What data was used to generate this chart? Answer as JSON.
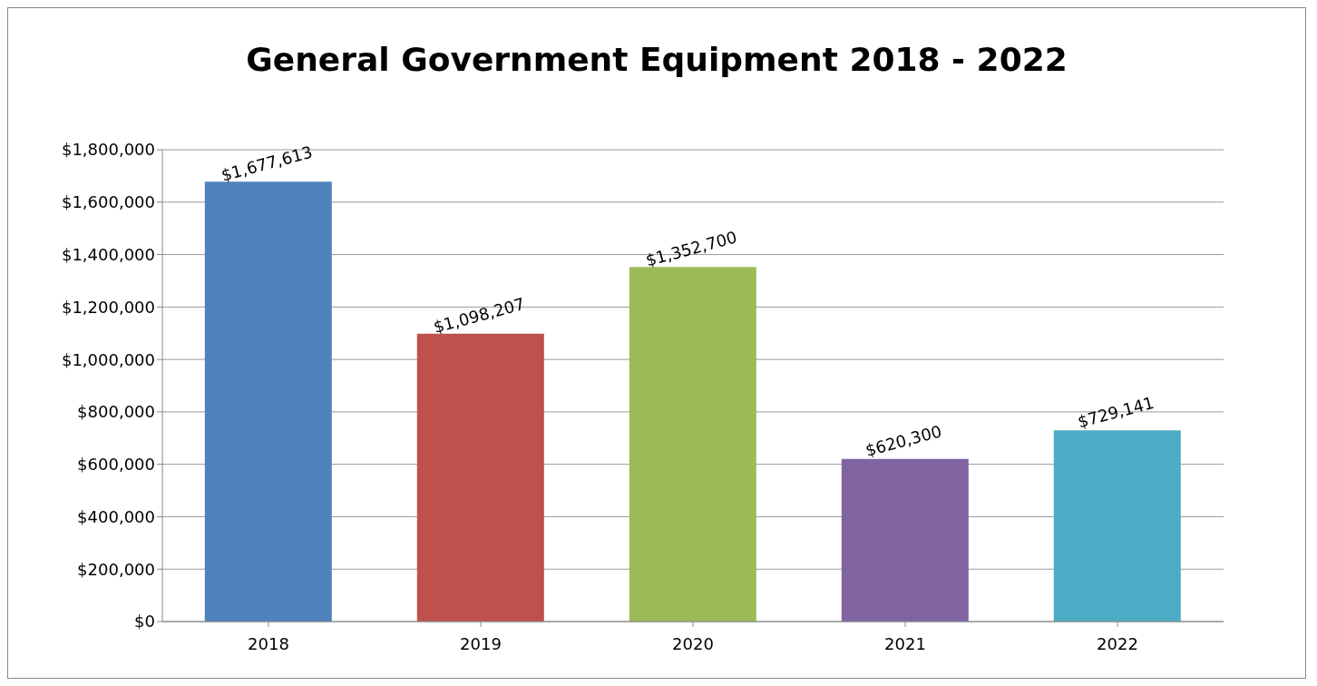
{
  "chart_data": {
    "type": "bar",
    "title": "General Government Equipment 2018 - 2022",
    "categories": [
      "2018",
      "2019",
      "2020",
      "2021",
      "2022"
    ],
    "values": [
      1677613,
      1098207,
      1352700,
      620300,
      729141
    ],
    "value_labels": [
      "$1,677,613",
      "$1,098,207",
      "$1,352,700",
      "$620,300",
      "$729,141"
    ],
    "colors": [
      "#4f81bd",
      "#c0504d",
      "#9bbb59",
      "#8064a2",
      "#4bacc6"
    ],
    "ylim": [
      0,
      1800000
    ],
    "yticks": [
      {
        "value": 0,
        "label": "$0"
      },
      {
        "value": 200000,
        "label": "$200,000"
      },
      {
        "value": 400000,
        "label": "$400,000"
      },
      {
        "value": 600000,
        "label": "$600,000"
      },
      {
        "value": 800000,
        "label": "$800,000"
      },
      {
        "value": 1000000,
        "label": "$1,000,000"
      },
      {
        "value": 1200000,
        "label": "$1,200,000"
      },
      {
        "value": 1400000,
        "label": "$1,400,000"
      },
      {
        "value": 1600000,
        "label": "$1,600,000"
      },
      {
        "value": 1800000,
        "label": "$1,800,000"
      }
    ],
    "grid": "y",
    "legend": false
  }
}
